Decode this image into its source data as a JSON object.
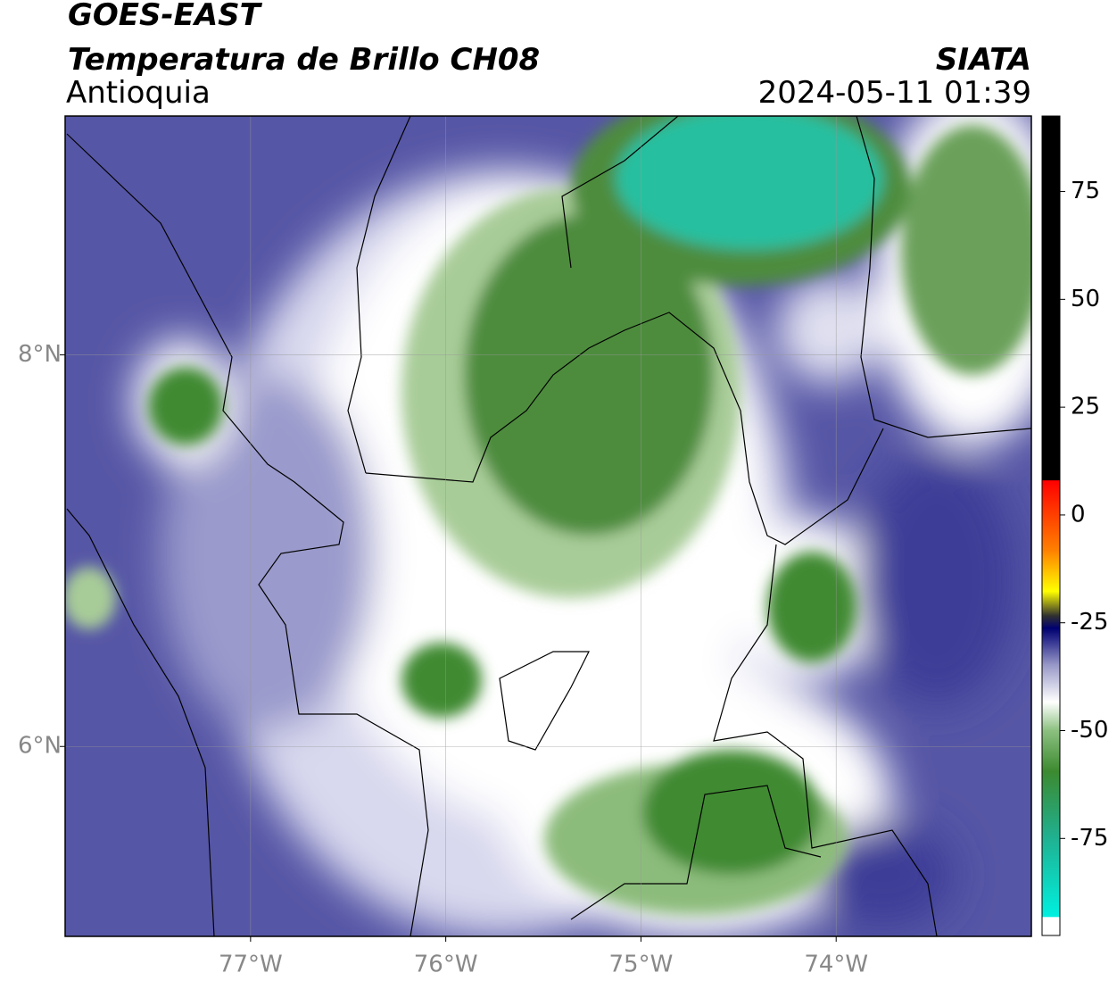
{
  "header": {
    "title": "GOES-EAST",
    "subtitle": "Temperatura de Brillo CH08",
    "region": "Antioquia",
    "source": "SIATA",
    "datetime": "2024-05-11 01:39"
  },
  "map": {
    "xlim": [
      -77.95,
      -73.0
    ],
    "ylim": [
      5.03,
      9.22
    ],
    "xticks": [
      {
        "value": -77,
        "label": "77°W"
      },
      {
        "value": -76,
        "label": "76°W"
      },
      {
        "value": -75,
        "label": "75°W"
      },
      {
        "value": -74,
        "label": "74°W"
      }
    ],
    "yticks": [
      {
        "value": 6,
        "label": "6°N"
      },
      {
        "value": 8,
        "label": "8°N"
      }
    ],
    "grid": true
  },
  "colorbar": {
    "lim": [
      -97.5,
      92.5
    ],
    "ticks": [
      -75,
      -50,
      -25,
      0,
      25,
      50,
      75
    ]
  }
}
